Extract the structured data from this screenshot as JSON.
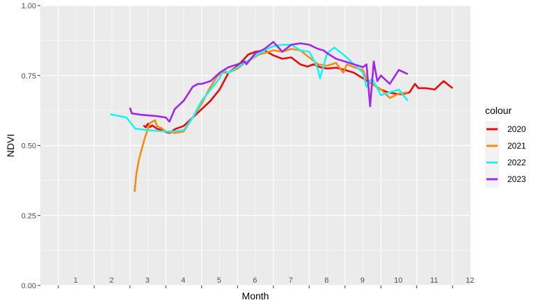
{
  "chart_data": {
    "type": "line",
    "xlabel": "Month",
    "ylabel": "NDVI",
    "xlim": [
      0.5,
      12.5
    ],
    "ylim": [
      0,
      1
    ],
    "x_ticks": [
      1,
      2,
      3,
      4,
      5,
      6,
      7,
      8,
      9,
      10,
      11,
      12
    ],
    "x_tick_labels": [
      "1",
      "2",
      "3",
      "4",
      "5",
      "6",
      "7",
      "8",
      "9",
      "10",
      "11",
      "12"
    ],
    "y_ticks": [
      0,
      0.25,
      0.5,
      0.75,
      1
    ],
    "y_tick_labels": [
      "0.00",
      "0.25",
      "0.50",
      "0.75",
      "1.00"
    ],
    "grid": true,
    "legend": {
      "title": "colour",
      "position": "right"
    },
    "series": [
      {
        "name": "2020",
        "color": "#e8090a",
        "x": [
          3.38,
          3.44,
          3.5,
          3.56,
          3.62,
          3.75,
          3.88,
          4.0,
          4.12,
          4.25,
          4.5,
          4.75,
          5.0,
          5.25,
          5.5,
          5.75,
          5.95,
          6.12,
          6.3,
          6.5,
          6.75,
          7.0,
          7.25,
          7.5,
          7.75,
          7.95,
          8.12,
          8.3,
          8.5,
          8.75,
          9.0,
          9.25,
          9.5,
          9.75,
          10.0,
          10.2,
          10.4,
          10.6,
          10.8,
          10.95,
          11.05,
          11.25,
          11.5,
          11.75,
          11.9,
          12.0
        ],
        "y": [
          0.572,
          0.565,
          0.578,
          0.566,
          0.572,
          0.56,
          0.555,
          0.548,
          0.545,
          0.558,
          0.57,
          0.6,
          0.63,
          0.66,
          0.7,
          0.76,
          0.78,
          0.8,
          0.825,
          0.835,
          0.84,
          0.822,
          0.81,
          0.815,
          0.79,
          0.782,
          0.79,
          0.78,
          0.775,
          0.778,
          0.77,
          0.76,
          0.74,
          0.72,
          0.7,
          0.69,
          0.685,
          0.683,
          0.69,
          0.72,
          0.705,
          0.705,
          0.7,
          0.73,
          0.715,
          0.705
        ]
      },
      {
        "name": "2021",
        "color": "#f58b12",
        "x": [
          3.13,
          3.18,
          3.25,
          3.4,
          3.55,
          3.7,
          3.75,
          3.88,
          4.0,
          4.25,
          4.5,
          4.75,
          5.0,
          5.2,
          5.45,
          5.6,
          5.75,
          6.0,
          6.25,
          6.4,
          6.6,
          6.75,
          7.0,
          7.25,
          7.5,
          7.75,
          8.0,
          8.25,
          8.5,
          8.75,
          8.95,
          9.05,
          9.25,
          9.5,
          9.6,
          9.75,
          10.0,
          10.25,
          10.5,
          10.75
        ],
        "y": [
          0.335,
          0.4,
          0.45,
          0.52,
          0.58,
          0.59,
          0.57,
          0.562,
          0.55,
          0.545,
          0.55,
          0.6,
          0.65,
          0.7,
          0.75,
          0.76,
          0.76,
          0.775,
          0.8,
          0.81,
          0.825,
          0.83,
          0.84,
          0.835,
          0.845,
          0.84,
          0.815,
          0.79,
          0.785,
          0.795,
          0.76,
          0.79,
          0.78,
          0.77,
          0.74,
          0.72,
          0.7,
          0.67,
          0.685,
          0.69
        ]
      },
      {
        "name": "2022",
        "color": "#1cf2f6",
        "x": [
          2.45,
          2.9,
          3.15,
          3.5,
          3.75,
          4.0,
          4.25,
          4.5,
          4.75,
          5.0,
          5.25,
          5.5,
          5.6,
          5.75,
          6.0,
          6.25,
          6.5,
          6.75,
          7.0,
          7.25,
          7.5,
          7.75,
          8.0,
          8.15,
          8.25,
          8.3,
          8.5,
          8.7,
          9.0,
          9.25,
          9.5,
          9.6,
          9.75,
          10.0,
          10.25,
          10.5,
          10.75
        ],
        "y": [
          0.612,
          0.6,
          0.56,
          0.555,
          0.552,
          0.55,
          0.55,
          0.555,
          0.6,
          0.66,
          0.7,
          0.74,
          0.77,
          0.76,
          0.78,
          0.8,
          0.82,
          0.84,
          0.855,
          0.86,
          0.86,
          0.84,
          0.835,
          0.8,
          0.77,
          0.74,
          0.83,
          0.85,
          0.82,
          0.79,
          0.76,
          0.71,
          0.74,
          0.68,
          0.69,
          0.7,
          0.66
        ]
      },
      {
        "name": "2023",
        "color": "#a126ea",
        "x": [
          3.0,
          3.05,
          3.3,
          3.75,
          4.0,
          4.1,
          4.25,
          4.5,
          4.75,
          4.9,
          5.0,
          5.25,
          5.5,
          5.75,
          6.0,
          6.2,
          6.25,
          6.5,
          6.75,
          7.0,
          7.25,
          7.4,
          7.5,
          7.75,
          8.0,
          8.25,
          8.4,
          8.5,
          8.75,
          9.0,
          9.25,
          9.5,
          9.6,
          9.7,
          9.8,
          9.9,
          10.0,
          10.25,
          10.5,
          10.75
        ],
        "y": [
          0.635,
          0.615,
          0.61,
          0.605,
          0.6,
          0.585,
          0.63,
          0.66,
          0.71,
          0.72,
          0.72,
          0.73,
          0.76,
          0.78,
          0.79,
          0.8,
          0.79,
          0.83,
          0.845,
          0.87,
          0.835,
          0.85,
          0.86,
          0.865,
          0.86,
          0.845,
          0.84,
          0.83,
          0.81,
          0.8,
          0.79,
          0.78,
          0.79,
          0.64,
          0.8,
          0.73,
          0.75,
          0.72,
          0.77,
          0.755
        ]
      }
    ]
  }
}
